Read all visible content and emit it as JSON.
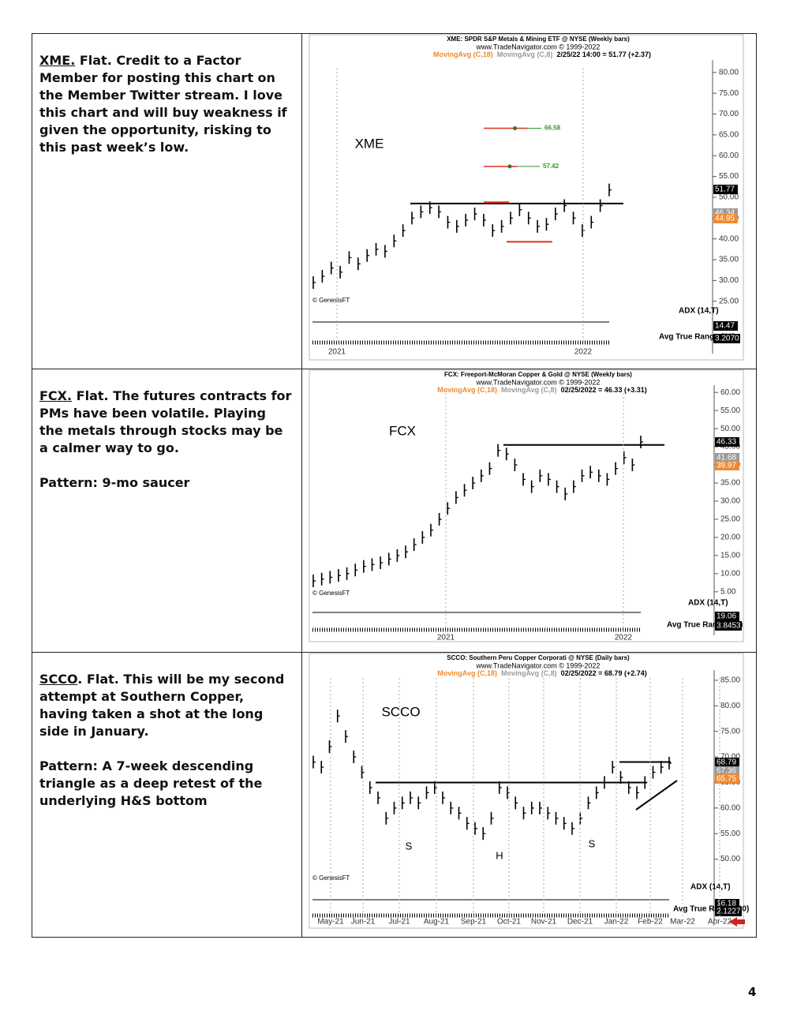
{
  "page_number": "4",
  "rows": [
    {
      "ticker": "XME.",
      "text": "Flat. Credit to a Factor Member for posting this chart on the Member Twitter stream. I love this chart and will buy weakness if given the opportunity, risking to this past week’s low.",
      "chart": {
        "title": "XME:  SPDR S&P Metals & Mining ETF @ NYSE  (Weekly bars)",
        "source": "www.TradeNavigator.com © 1999-2022",
        "ma1": "MovingAvg (C,18)",
        "ma2": "MovingAvg (C,8)",
        "quote": "2/25/22 14:00 = 51.77 (+2.37)",
        "label": "XME",
        "ylim": [
          24,
          83
        ],
        "yticks": [
          {
            "value": 25,
            "label": "25.00"
          },
          {
            "value": 30,
            "label": "30.00"
          },
          {
            "value": 35,
            "label": "35.00"
          },
          {
            "value": 40,
            "label": "40.00"
          },
          {
            "value": 45,
            "label": "45.00"
          },
          {
            "value": 50,
            "label": "50.00"
          },
          {
            "value": 55,
            "label": "55.00"
          },
          {
            "value": 60,
            "label": "60.00"
          },
          {
            "value": 65,
            "label": "65.00"
          },
          {
            "value": 70,
            "label": "70.00"
          },
          {
            "value": 75,
            "label": "75.00"
          },
          {
            "value": 80,
            "label": "80.00"
          }
        ],
        "values": [
          29.5,
          31,
          33,
          32,
          35.5,
          34,
          36,
          37.5,
          37,
          39.5,
          42,
          45,
          46.5,
          47.5,
          46.5,
          44,
          43,
          44.5,
          46,
          44.5,
          42,
          43,
          45,
          47,
          45,
          43,
          43.5,
          46,
          48,
          45,
          42,
          44,
          48,
          51.77
        ],
        "levels": [
          {
            "value": 48.5,
            "color": "#000000"
          },
          {
            "value": 48.8,
            "color": "#e03020"
          },
          {
            "value": 39.3,
            "color": "#e03020"
          }
        ],
        "targets": [
          66.58,
          57.42
        ],
        "price_tags": [
          {
            "value": 51.77,
            "color": "#000000"
          },
          {
            "value": 46.34,
            "color": "#9a9a9a"
          },
          {
            "value": 44.95,
            "color": "#f08a30"
          }
        ],
        "credit": "© GenesisFT",
        "adx_label": "ADX (14,T)",
        "adx_value": 14.47,
        "atr_label": "Avg True Range (30)",
        "atr_value": "3.2070",
        "x_labels": [
          "2021",
          "2022"
        ]
      }
    },
    {
      "ticker": "FCX.",
      "text": "Flat. The futures contracts for PMs have been volatile. Playing the metals through stocks may be a calmer way to go.",
      "pattern": "Pattern: 9-mo saucer",
      "chart": {
        "title": "FCX:  Freeport-McMoran Copper & Gold @ NYSE  (Weekly bars)",
        "source": "www.TradeNavigator.com © 1999-2022",
        "ma1": "MovingAvg (C,18)",
        "ma2": "MovingAvg (C,8)",
        "quote": "02/25/2022 = 46.33 (+3.31)",
        "label": "FCX",
        "ylim": [
          3,
          62
        ],
        "yticks": [
          {
            "value": 5,
            "label": "5.00"
          },
          {
            "value": 10,
            "label": "10.00"
          },
          {
            "value": 15,
            "label": "15.00"
          },
          {
            "value": 20,
            "label": "20.00"
          },
          {
            "value": 25,
            "label": "25.00"
          },
          {
            "value": 30,
            "label": "30.00"
          },
          {
            "value": 35,
            "label": "35.00"
          },
          {
            "value": 40,
            "label": "40.00"
          },
          {
            "value": 45,
            "label": "45.00"
          },
          {
            "value": 50,
            "label": "50.00"
          },
          {
            "value": 55,
            "label": "55.00"
          },
          {
            "value": 60,
            "label": "60.00"
          }
        ],
        "values": [
          8,
          8.5,
          9,
          9.5,
          10,
          11,
          12,
          12.5,
          13,
          14,
          15,
          16,
          18,
          20,
          22,
          25,
          28,
          31,
          33,
          35,
          37,
          39,
          44,
          43,
          40,
          36,
          34,
          37,
          36,
          34,
          32,
          34,
          37,
          38,
          37,
          36,
          39,
          42,
          40,
          46.33
        ],
        "levels": [
          {
            "value": 45.5,
            "color": "#000000"
          }
        ],
        "price_tags": [
          {
            "value": 46.33,
            "color": "#000000"
          },
          {
            "value": 41.68,
            "color": "#9a9a9a"
          },
          {
            "value": 39.97,
            "color": "#f08a30"
          }
        ],
        "credit": "© GenesisFT",
        "adx_label": "ADX (14,T)",
        "adx_value": 19.06,
        "atr_label": "Avg True Range (30)",
        "atr_value": "3.8453",
        "x_labels": [
          "2021",
          "2022"
        ]
      }
    },
    {
      "ticker": "SCCO",
      "text": ". Flat. This will be my second attempt at Southern Copper, having taken a shot at the long side in January.",
      "pattern": "Pattern: A 7-week descending triangle as a deep retest of the underlying H&S bottom",
      "chart": {
        "title": "SCCO:  Southern Peru Copper Corporati @ NYSE  (Daily bars)",
        "source": "www.TradeNavigator.com © 1999-2022",
        "ma1": "MovingAvg (C,18)",
        "ma2": "MovingAvg (C,8)",
        "quote": "02/25/2022 = 68.79 (+2.74)",
        "label": "SCCO",
        "ylim": [
          47,
          87
        ],
        "yticks": [
          {
            "value": 50,
            "label": "50.00"
          },
          {
            "value": 55,
            "label": "55.00"
          },
          {
            "value": 60,
            "label": "60.00"
          },
          {
            "value": 65,
            "label": "65.00"
          },
          {
            "value": 70,
            "label": "70.00"
          },
          {
            "value": 75,
            "label": "75.00"
          },
          {
            "value": 80,
            "label": "80.00"
          },
          {
            "value": 85,
            "label": "85.00"
          }
        ],
        "values": [
          69,
          68,
          72,
          78,
          74,
          70,
          67,
          64,
          62,
          58,
          60,
          61,
          62,
          61,
          63,
          64,
          62,
          60,
          59,
          57,
          56,
          55,
          58,
          64,
          63,
          61,
          59,
          60,
          60,
          59,
          58,
          57,
          56,
          58,
          61,
          63,
          65,
          68,
          66,
          64,
          63,
          65,
          67,
          68,
          68.79
        ],
        "levels": [
          {
            "value": 65,
            "color": "#000000"
          },
          {
            "value": 69,
            "color": "#000000"
          }
        ],
        "pattern_labels": [
          "S",
          "H",
          "S"
        ],
        "price_tags": [
          {
            "value": 68.79,
            "color": "#000000"
          },
          {
            "value": 67.36,
            "color": "#9a9a9a"
          },
          {
            "value": 65.75,
            "color": "#f08a30"
          }
        ],
        "credit": "© GenesisFT",
        "adx_label": "ADX (14,T)",
        "adx_value": 16.18,
        "atr_label": "Avg True Range (30)",
        "atr_value": "2.1227",
        "x_labels": [
          "May-21",
          "Jun-21",
          "Jul-21",
          "Aug-21",
          "Sep-21",
          "Oct-21",
          "Nov-21",
          "Dec-21",
          "Jan-22",
          "Feb-22",
          "Mar-22",
          "Apr-22"
        ]
      }
    }
  ]
}
